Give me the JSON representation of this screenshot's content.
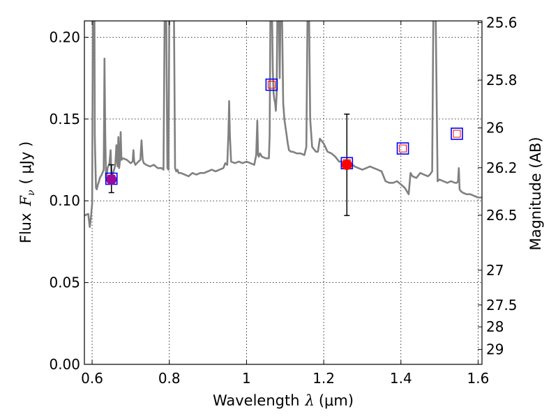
{
  "chart_data": {
    "type": "line",
    "xlabel_prefix": "Wavelength",
    "xlabel_symbol": "λ",
    "xlabel_unit": "(μm)",
    "ylabel_prefix": "Flux",
    "ylabel_symbol": "F",
    "ylabel_subscript": "ν",
    "ylabel_unit": "( μJy )",
    "y2label": "Magnitude (AB)",
    "xlim": [
      0.58,
      1.61
    ],
    "ylim": [
      0.0,
      0.21
    ],
    "grid": true,
    "x_ticks": [
      {
        "value": 0.6,
        "label": "0.6"
      },
      {
        "value": 0.8,
        "label": "0.8"
      },
      {
        "value": 1.0,
        "label": "1"
      },
      {
        "value": 1.2,
        "label": "1.2"
      },
      {
        "value": 1.4,
        "label": "1.4"
      },
      {
        "value": 1.6,
        "label": "1.6"
      }
    ],
    "y_ticks": [
      {
        "value": 0.0,
        "label": "0.00"
      },
      {
        "value": 0.05,
        "label": "0.05"
      },
      {
        "value": 0.1,
        "label": "0.10"
      },
      {
        "value": 0.15,
        "label": "0.15"
      },
      {
        "value": 0.2,
        "label": "0.20"
      }
    ],
    "y2_ticks": [
      {
        "value": 25.6,
        "label": "25.6"
      },
      {
        "value": 25.8,
        "label": "25.8"
      },
      {
        "value": 26.0,
        "label": "26"
      },
      {
        "value": 26.2,
        "label": "26.2"
      },
      {
        "value": 26.5,
        "label": "26.5"
      },
      {
        "value": 27.0,
        "label": "27"
      },
      {
        "value": 27.5,
        "label": "27.5"
      },
      {
        "value": 28.0,
        "label": "28"
      },
      {
        "value": 29.0,
        "label": "29"
      }
    ],
    "spectrum": {
      "color": "#808080",
      "x": [
        0.58,
        0.59,
        0.594,
        0.597,
        0.6,
        0.602,
        0.604,
        0.606,
        0.607,
        0.608,
        0.61,
        0.612,
        0.615,
        0.618,
        0.62,
        0.625,
        0.63,
        0.632,
        0.634,
        0.636,
        0.638,
        0.64,
        0.645,
        0.648,
        0.65,
        0.652,
        0.654,
        0.657,
        0.66,
        0.663,
        0.666,
        0.668,
        0.67,
        0.672,
        0.674,
        0.676,
        0.68,
        0.69,
        0.7,
        0.705,
        0.707,
        0.709,
        0.712,
        0.72,
        0.725,
        0.728,
        0.731,
        0.734,
        0.74,
        0.75,
        0.76,
        0.77,
        0.78,
        0.785,
        0.788,
        0.79,
        0.792,
        0.795,
        0.798,
        0.8,
        0.805,
        0.808,
        0.81,
        0.812,
        0.815,
        0.818,
        0.821,
        0.824,
        0.83,
        0.84,
        0.85,
        0.86,
        0.87,
        0.88,
        0.89,
        0.9,
        0.91,
        0.92,
        0.93,
        0.94,
        0.945,
        0.95,
        0.953,
        0.955,
        0.957,
        0.96,
        0.97,
        0.98,
        0.99,
        1.0,
        1.01,
        1.02,
        1.025,
        1.028,
        1.03,
        1.032,
        1.035,
        1.04,
        1.05,
        1.058,
        1.06,
        1.062,
        1.064,
        1.066,
        1.068,
        1.07,
        1.072,
        1.074,
        1.076,
        1.078,
        1.08,
        1.082,
        1.084,
        1.086,
        1.088,
        1.09,
        1.092,
        1.095,
        1.098,
        1.101,
        1.104,
        1.107,
        1.11,
        1.115,
        1.12,
        1.13,
        1.14,
        1.15,
        1.155,
        1.158,
        1.16,
        1.162,
        1.165,
        1.17,
        1.18,
        1.185,
        1.19,
        1.2,
        1.21,
        1.22,
        1.23,
        1.24,
        1.25,
        1.26,
        1.27,
        1.28,
        1.29,
        1.3,
        1.31,
        1.32,
        1.33,
        1.34,
        1.35,
        1.36,
        1.37,
        1.38,
        1.39,
        1.4,
        1.41,
        1.42,
        1.425,
        1.43,
        1.44,
        1.45,
        1.46,
        1.47,
        1.475,
        1.478,
        1.481,
        1.484,
        1.487,
        1.49,
        1.495,
        1.5,
        1.51,
        1.52,
        1.53,
        1.54,
        1.545,
        1.548,
        1.55,
        1.552,
        1.555,
        1.56,
        1.57,
        1.58,
        1.59,
        1.6,
        1.61
      ],
      "y": [
        0.091,
        0.092,
        0.084,
        0.09,
        0.098,
        0.215,
        0.215,
        0.215,
        0.14,
        0.128,
        0.108,
        0.107,
        0.11,
        0.112,
        0.114,
        0.116,
        0.119,
        0.187,
        0.14,
        0.114,
        0.116,
        0.12,
        0.123,
        0.131,
        0.116,
        0.114,
        0.117,
        0.119,
        0.122,
        0.134,
        0.121,
        0.139,
        0.12,
        0.124,
        0.142,
        0.125,
        0.126,
        0.125,
        0.123,
        0.124,
        0.131,
        0.124,
        0.122,
        0.124,
        0.125,
        0.137,
        0.125,
        0.123,
        0.122,
        0.121,
        0.122,
        0.12,
        0.12,
        0.119,
        0.215,
        0.215,
        0.215,
        0.12,
        0.119,
        0.215,
        0.215,
        0.215,
        0.215,
        0.215,
        0.12,
        0.118,
        0.119,
        0.117,
        0.117,
        0.116,
        0.115,
        0.117,
        0.116,
        0.117,
        0.117,
        0.118,
        0.119,
        0.118,
        0.119,
        0.12,
        0.123,
        0.122,
        0.14,
        0.161,
        0.14,
        0.124,
        0.123,
        0.124,
        0.123,
        0.124,
        0.123,
        0.122,
        0.128,
        0.149,
        0.128,
        0.127,
        0.129,
        0.127,
        0.126,
        0.126,
        0.14,
        0.215,
        0.215,
        0.215,
        0.18,
        0.166,
        0.162,
        0.16,
        0.155,
        0.165,
        0.215,
        0.215,
        0.215,
        0.175,
        0.215,
        0.215,
        0.215,
        0.16,
        0.15,
        0.145,
        0.14,
        0.135,
        0.131,
        0.13,
        0.13,
        0.129,
        0.129,
        0.128,
        0.133,
        0.215,
        0.215,
        0.215,
        0.15,
        0.133,
        0.13,
        0.13,
        0.138,
        0.135,
        0.13,
        0.129,
        0.127,
        0.124,
        0.124,
        0.123,
        0.123,
        0.121,
        0.12,
        0.119,
        0.12,
        0.121,
        0.12,
        0.119,
        0.118,
        0.112,
        0.111,
        0.111,
        0.112,
        0.11,
        0.108,
        0.104,
        0.117,
        0.115,
        0.114,
        0.117,
        0.116,
        0.115,
        0.116,
        0.117,
        0.118,
        0.215,
        0.215,
        0.215,
        0.112,
        0.113,
        0.112,
        0.111,
        0.112,
        0.111,
        0.111,
        0.112,
        0.12,
        0.107,
        0.106,
        0.105,
        0.104,
        0.104,
        0.103,
        0.102,
        0.102
      ]
    },
    "photometry": [
      {
        "x": 0.65,
        "y": 0.113,
        "yerr_low": 0.008,
        "yerr_high": 0.009,
        "marker": "circle",
        "marker_color": "#9b0a9b"
      },
      {
        "x": 1.26,
        "y": 0.122,
        "yerr_low": 0.031,
        "yerr_high": 0.031,
        "marker": "circle",
        "marker_color": "#ff0000"
      }
    ],
    "model_points": [
      {
        "x": 0.65,
        "y": 0.1135,
        "outer_color": "#0000ff",
        "inner_color": "#ff0000"
      },
      {
        "x": 1.065,
        "y": 0.171,
        "outer_color": "#0000ff",
        "inner_color": "#ff0000"
      },
      {
        "x": 1.26,
        "y": 0.123,
        "outer_color": "#0000ff",
        "inner_color": "#ff0000"
      },
      {
        "x": 1.405,
        "y": 0.132,
        "outer_color": "#0000ff",
        "inner_color": "#ff0000"
      },
      {
        "x": 1.545,
        "y": 0.141,
        "outer_color": "#0000ff",
        "inner_color": "#ff0000"
      }
    ]
  }
}
